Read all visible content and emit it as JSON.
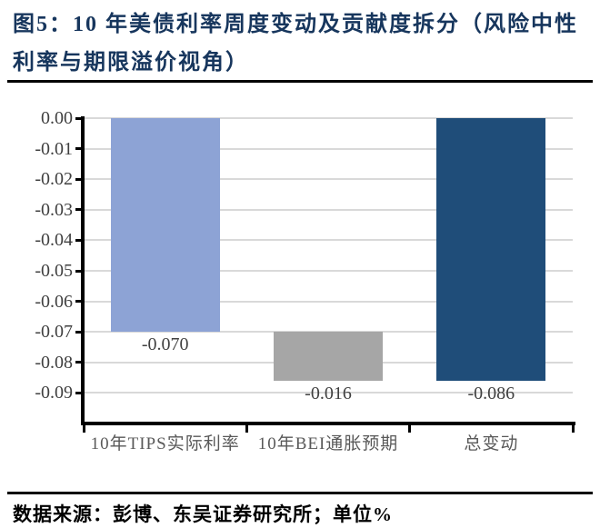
{
  "page": {
    "title_lines": [
      "图5：10 年美债利率周度变动及贡献度拆分（风险中性",
      "利率与期限溢价视角）"
    ],
    "source_note": "数据来源：彭博、东吴证券研究所；单位%"
  },
  "chart_data": {
    "type": "bar",
    "subtype": "waterfall",
    "title": "10 年美债利率周度变动及贡献度拆分（风险中性利率与期限溢价视角）",
    "unit": "%",
    "categories": [
      "10年TIPS实际利率",
      "10年BEI通胀预期",
      "总变动"
    ],
    "bars": [
      {
        "category": "10年TIPS实际利率",
        "value": -0.07,
        "from": 0,
        "to": -0.07,
        "label": "-0.070",
        "color": "#8DA3D5"
      },
      {
        "category": "10年BEI通胀预期",
        "value": -0.016,
        "from": -0.07,
        "to": -0.086,
        "label": "-0.016",
        "color": "#A6A6A6"
      },
      {
        "category": "总变动",
        "value": -0.086,
        "from": 0,
        "to": -0.086,
        "label": "-0.086",
        "color": "#1F4D79"
      }
    ],
    "y_axis": {
      "max": 0,
      "min": -0.097,
      "tick_step": 0.01,
      "tick_labels": [
        "0.00",
        "-0.01",
        "-0.02",
        "-0.03",
        "-0.04",
        "-0.05",
        "-0.06",
        "-0.07",
        "-0.08",
        "-0.09"
      ]
    },
    "grid": true,
    "legend": "none"
  },
  "colors": {
    "title_text": "#17365D",
    "bar_light_blue": "#8DA3D5",
    "bar_gray": "#A6A6A6",
    "bar_dark_blue": "#1F4D79",
    "gridline": "#D9D9D9",
    "axis": "#000000",
    "tick_text": "#404040",
    "category_text": "#595959"
  }
}
